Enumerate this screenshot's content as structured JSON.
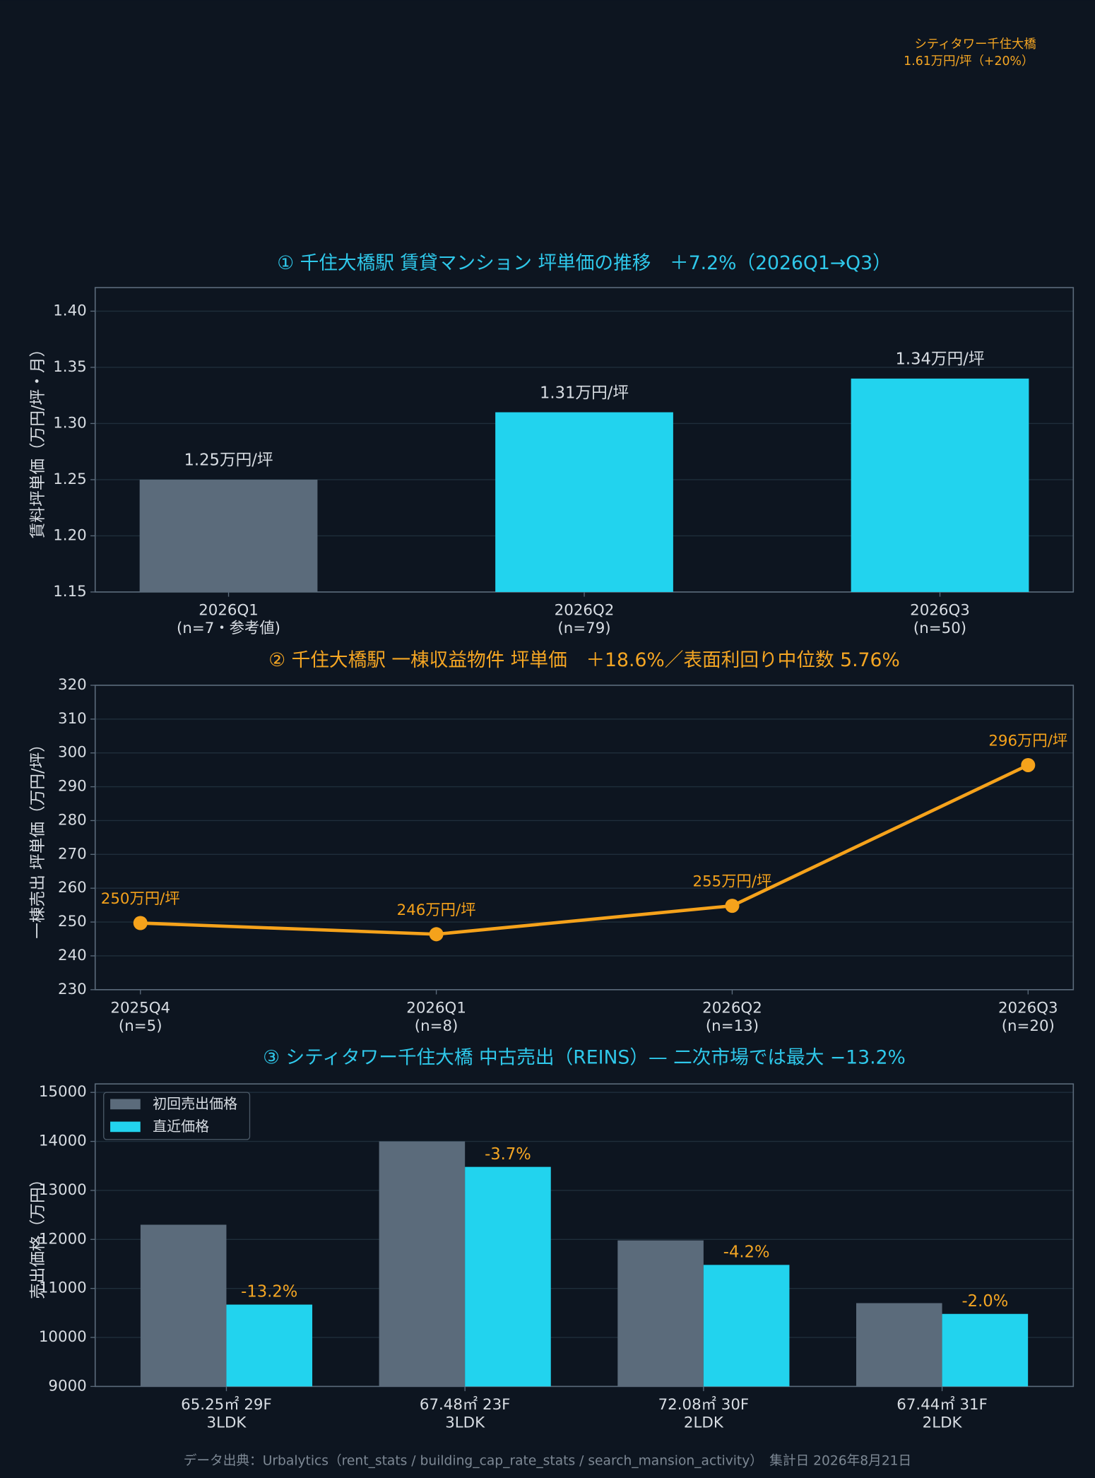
{
  "annotation": {
    "color": "#f5a623",
    "lines": [
      "シティタワー千住大橋",
      "1.61万円/坪（+20%）"
    ]
  },
  "chart_data": [
    {
      "type": "bar",
      "title": "① 千住大橋駅 賃貸マンション 坪単価の推移　＋7.2%（2026Q1→Q3）",
      "title_color": "#2fc8ea",
      "y_label": "賃料坪単価（万円/坪・月）",
      "categories": [
        [
          "2026Q1",
          "(n=7・参考値)"
        ],
        [
          "2026Q2",
          "(n=79)"
        ],
        [
          "2026Q3",
          "(n=50)"
        ]
      ],
      "values": [
        1.25,
        1.31,
        1.34
      ],
      "value_labels": [
        "1.25万円/坪",
        "1.31万円/坪",
        "1.34万円/坪"
      ],
      "colors": [
        "#5b6b7b",
        "#22d3ee",
        "#22d3ee"
      ],
      "ylim": [
        1.15,
        1.421
      ],
      "yticks": [
        {
          "value": 1.15,
          "label": "1.15"
        },
        {
          "value": 1.2,
          "label": "1.20"
        },
        {
          "value": 1.25,
          "label": "1.25"
        },
        {
          "value": 1.3,
          "label": "1.30"
        },
        {
          "value": 1.35,
          "label": "1.35"
        },
        {
          "value": 1.4,
          "label": "1.40"
        }
      ],
      "grid": true
    },
    {
      "type": "line",
      "title": "② 千住大橋駅 一棟収益物件 坪単価　＋18.6%／表面利回り中位数 5.76%",
      "title_color": "#f5a623",
      "y_label": "一棟売出 坪単価（万円/坪）",
      "categories": [
        [
          "2025Q4",
          "(n=5)"
        ],
        [
          "2026Q1",
          "(n=8)"
        ],
        [
          "2026Q2",
          "(n=13)"
        ],
        [
          "2026Q3",
          "(n=20)"
        ]
      ],
      "values": [
        249.7,
        246.4,
        254.8,
        296.4
      ],
      "value_labels": [
        "250万円/坪",
        "246万円/坪",
        "255万円/坪",
        "296万円/坪"
      ],
      "color": "#f5a21b",
      "ylim": [
        230,
        320
      ],
      "yticks": [
        230,
        240,
        250,
        260,
        270,
        280,
        290,
        300,
        310,
        320
      ],
      "grid": true
    },
    {
      "type": "bar",
      "title": "③ シティタワー千住大橋 中古売出（REINS）— 二次市場では最大 −13.2%",
      "title_color": "#2fc8ea",
      "y_label": "売出価格（万円）",
      "categories": [
        [
          "65.25㎡ 29F",
          "3LDK"
        ],
        [
          "67.48㎡ 23F",
          "3LDK"
        ],
        [
          "72.08㎡ 30F",
          "2LDK"
        ],
        [
          "67.44㎡ 31F",
          "2LDK"
        ]
      ],
      "series": [
        {
          "name": "初回売出価格",
          "color": "#5b6b7b",
          "values": [
            12300,
            14000,
            11980,
            10700
          ]
        },
        {
          "name": "直近価格",
          "color": "#22d3ee",
          "values": [
            10670,
            13480,
            11480,
            10480
          ],
          "value_labels": [
            "-13.2%",
            "-3.7%",
            "-4.2%",
            "-2.0%"
          ],
          "label_color": "#f5a623"
        }
      ],
      "ylim": [
        9000,
        15173
      ],
      "yticks": [
        9000,
        10000,
        11000,
        12000,
        13000,
        14000,
        15000
      ],
      "grid": true,
      "legend": "upper left"
    }
  ],
  "footer": "データ出典：Urbalytics（rent_stats / building_cap_rate_stats / search_mansion_activity）　集計日 2026年8月21日"
}
